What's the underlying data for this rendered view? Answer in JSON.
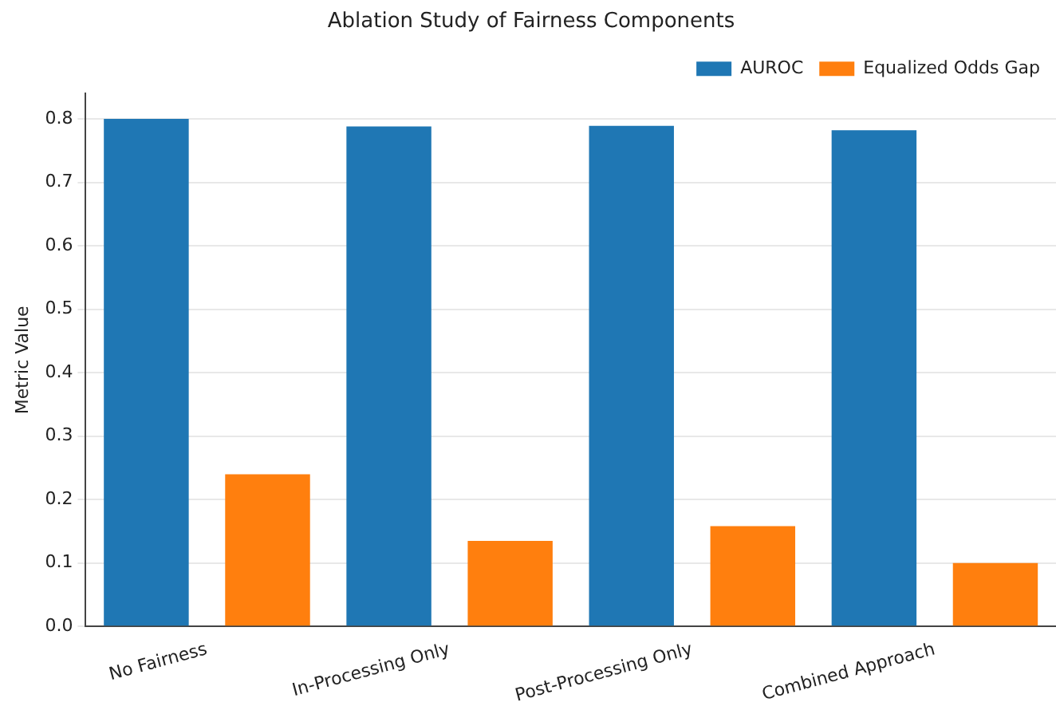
{
  "chart_data": {
    "type": "bar",
    "title": "Ablation Study of Fairness Components",
    "ylabel": "Metric Value",
    "categories": [
      "No Fairness",
      "In-Processing Only",
      "Post-Processing Only",
      "Combined Approach"
    ],
    "series": [
      {
        "name": "AUROC",
        "color": "#1f77b4",
        "values": [
          0.8,
          0.788,
          0.789,
          0.782
        ]
      },
      {
        "name": "Equalized Odds Gap",
        "color": "#ff7f0e",
        "values": [
          0.24,
          0.135,
          0.158,
          0.1
        ]
      }
    ],
    "ylim": [
      0,
      0.84
    ],
    "yticks": [
      {
        "value": 0,
        "label": "0.0"
      },
      0.1,
      0.2,
      0.3,
      0.4,
      0.5,
      0.6,
      0.7,
      0.8
    ],
    "grid": "y",
    "legend": "top right"
  }
}
